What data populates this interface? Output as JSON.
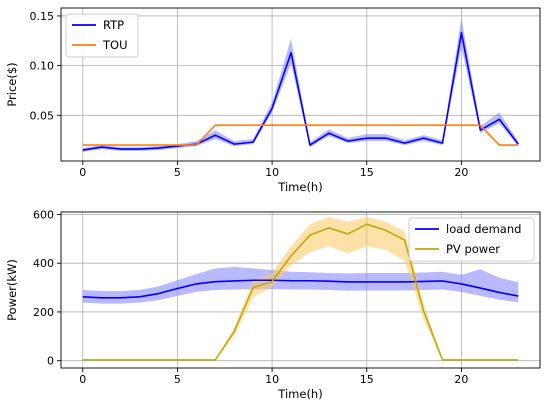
{
  "chart_data": [
    {
      "type": "line",
      "xlabel": "Time(h)",
      "ylabel": "Price($)",
      "xlim": [
        -1.15,
        24.15
      ],
      "ylim": [
        0.004,
        0.158
      ],
      "xticks": [
        0,
        5,
        10,
        15,
        20
      ],
      "yticks": [
        0.05,
        0.1,
        0.15
      ],
      "ytick_labels": [
        "0.05",
        "0.10",
        "0.15"
      ],
      "grid": true,
      "legend_position": "top-left",
      "x": [
        0,
        1,
        2,
        3,
        4,
        5,
        6,
        7,
        8,
        9,
        10,
        11,
        12,
        13,
        14,
        15,
        16,
        17,
        18,
        19,
        20,
        21,
        22,
        23
      ],
      "series": [
        {
          "name": "RTP",
          "color": "#0000ff",
          "band_color": "#8080ff",
          "values": [
            0.015,
            0.018,
            0.016,
            0.016,
            0.017,
            0.019,
            0.021,
            0.03,
            0.021,
            0.023,
            0.057,
            0.113,
            0.02,
            0.032,
            0.024,
            0.027,
            0.027,
            0.022,
            0.027,
            0.022,
            0.133,
            0.035,
            0.046,
            0.021
          ],
          "band_lower": [
            0.013,
            0.016,
            0.014,
            0.014,
            0.015,
            0.017,
            0.019,
            0.026,
            0.019,
            0.021,
            0.053,
            0.102,
            0.018,
            0.029,
            0.022,
            0.024,
            0.024,
            0.02,
            0.024,
            0.02,
            0.118,
            0.032,
            0.042,
            0.019
          ],
          "band_upper": [
            0.017,
            0.02,
            0.018,
            0.018,
            0.019,
            0.021,
            0.024,
            0.035,
            0.024,
            0.026,
            0.063,
            0.127,
            0.023,
            0.036,
            0.027,
            0.031,
            0.031,
            0.025,
            0.03,
            0.025,
            0.148,
            0.039,
            0.053,
            0.024
          ]
        },
        {
          "name": "TOU",
          "color": "#ff7f0e",
          "values": [
            0.02,
            0.02,
            0.02,
            0.02,
            0.02,
            0.02,
            0.02,
            0.04,
            0.04,
            0.04,
            0.04,
            0.04,
            0.04,
            0.04,
            0.04,
            0.04,
            0.04,
            0.04,
            0.04,
            0.04,
            0.04,
            0.04,
            0.02,
            0.02
          ]
        }
      ]
    },
    {
      "type": "line",
      "xlabel": "Time(h)",
      "ylabel": "Power(kW)",
      "xlim": [
        -1.15,
        24.15
      ],
      "ylim": [
        -30,
        610
      ],
      "xticks": [
        0,
        5,
        10,
        15,
        20
      ],
      "yticks": [
        0,
        200,
        400,
        600
      ],
      "ytick_labels": [
        "0",
        "200",
        "400",
        "600"
      ],
      "grid": true,
      "legend_position": "top-right",
      "x": [
        0,
        1,
        2,
        3,
        4,
        5,
        6,
        7,
        8,
        9,
        10,
        11,
        12,
        13,
        14,
        15,
        16,
        17,
        18,
        19,
        20,
        21,
        22,
        23
      ],
      "series": [
        {
          "name": "load demand",
          "color": "#0000ff",
          "band_color": "#8080ff",
          "values": [
            262,
            258,
            258,
            262,
            275,
            296,
            315,
            324,
            327,
            330,
            330,
            328,
            328,
            326,
            323,
            323,
            323,
            323,
            325,
            327,
            315,
            298,
            280,
            265
          ],
          "band_lower": [
            238,
            234,
            234,
            238,
            248,
            266,
            282,
            290,
            292,
            293,
            294,
            292,
            292,
            290,
            287,
            288,
            288,
            288,
            290,
            292,
            282,
            266,
            250,
            240
          ],
          "band_upper": [
            290,
            286,
            286,
            290,
            305,
            330,
            355,
            378,
            385,
            378,
            372,
            365,
            363,
            360,
            358,
            360,
            360,
            360,
            362,
            365,
            352,
            375,
            340,
            322
          ]
        },
        {
          "name": "PV power",
          "color": "#bfa80a",
          "band_color": "#ffc860",
          "values": [
            3,
            3,
            3,
            3,
            3,
            3,
            3,
            3,
            120,
            300,
            325,
            430,
            515,
            545,
            520,
            560,
            535,
            495,
            205,
            3,
            3,
            3,
            3,
            3
          ],
          "band_lower": [
            0,
            0,
            0,
            0,
            0,
            0,
            0,
            0,
            100,
            260,
            300,
            390,
            445,
            470,
            440,
            470,
            455,
            410,
            170,
            0,
            0,
            0,
            0,
            0
          ],
          "band_upper": [
            0,
            0,
            0,
            0,
            0,
            0,
            0,
            0,
            135,
            330,
            360,
            470,
            560,
            590,
            570,
            590,
            570,
            530,
            235,
            0,
            0,
            0,
            0,
            0
          ]
        }
      ]
    }
  ]
}
